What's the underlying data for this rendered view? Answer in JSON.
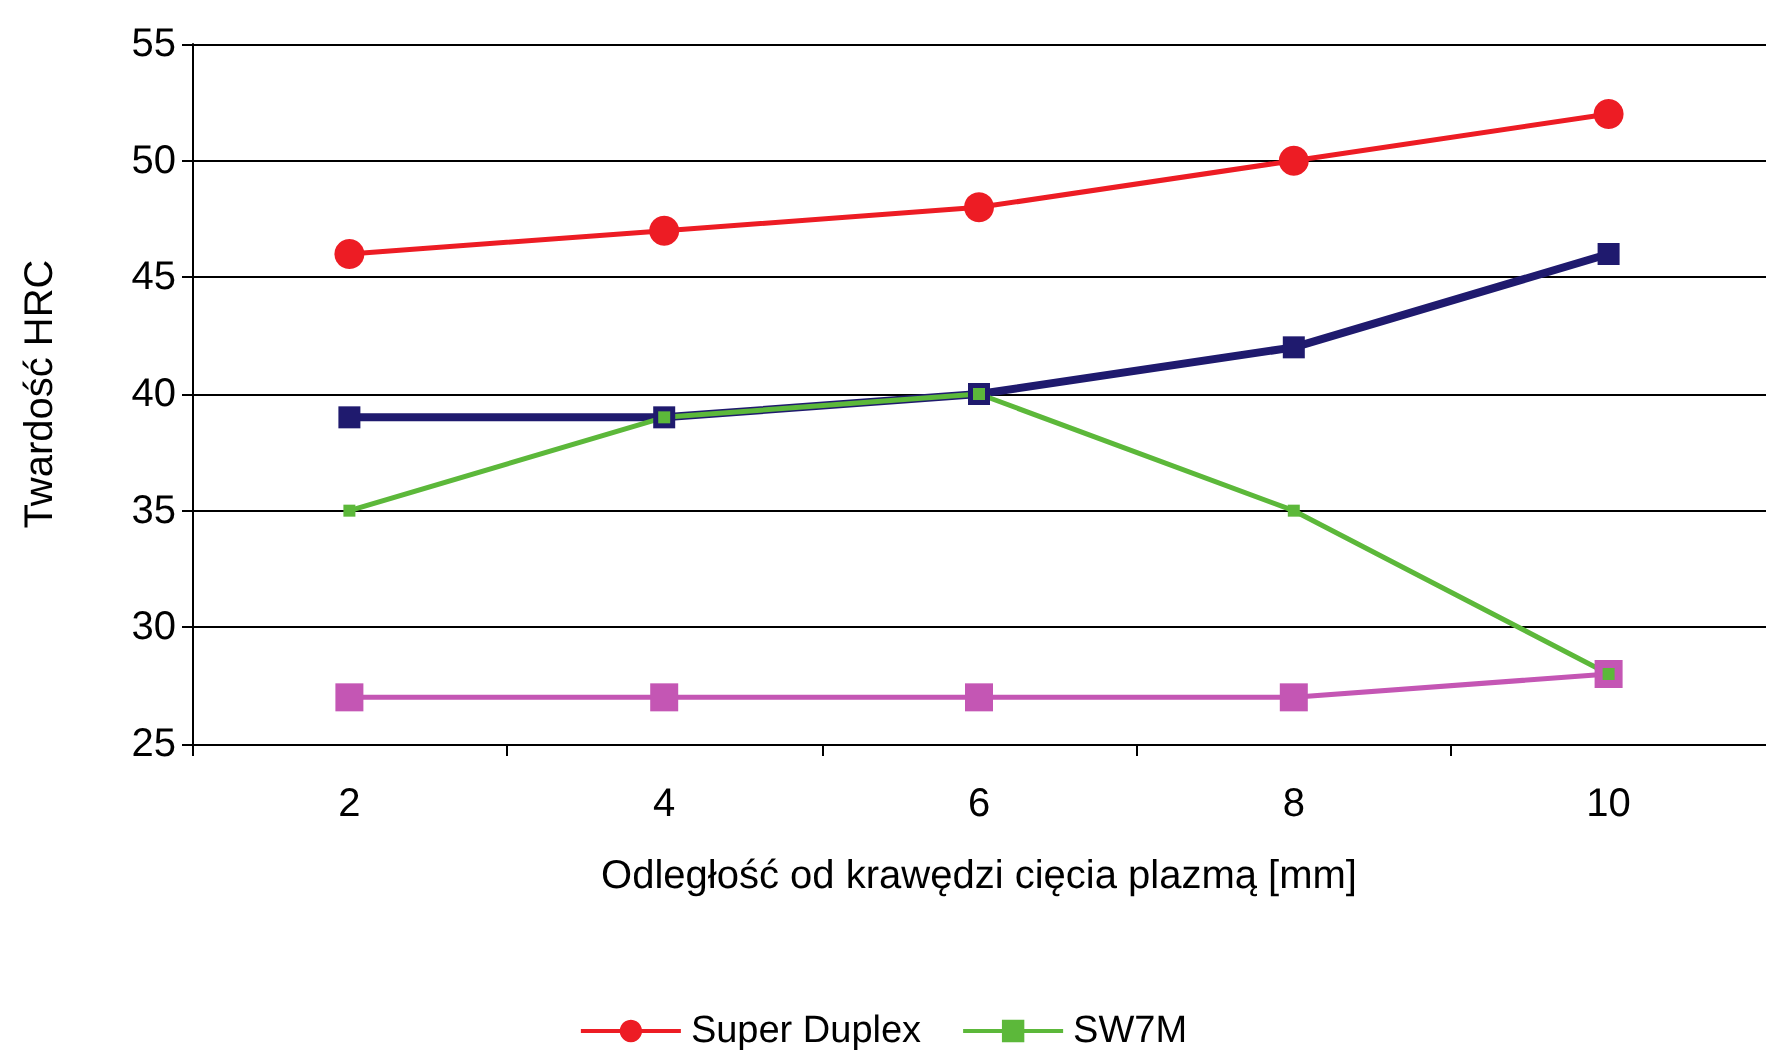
{
  "chart_data": {
    "type": "line",
    "xlabel": "Odległość od krawędzi cięcia plazmą [mm]",
    "ylabel": "Twardość HRC",
    "categories": [
      "2",
      "4",
      "6",
      "8",
      "10"
    ],
    "series": [
      {
        "name": "Super Duplex",
        "color": "#ed1c24",
        "marker": "circle",
        "values": [
          46,
          47,
          48,
          50,
          52
        ]
      },
      {
        "color": "#1f1a6e",
        "marker": "square",
        "values": [
          39,
          39,
          40,
          42,
          46
        ]
      },
      {
        "color": "#c456b4",
        "marker": "square",
        "values": [
          27,
          27,
          27,
          27,
          28
        ]
      },
      {
        "name": "SW7M",
        "color": "#5cb83a",
        "marker": "square",
        "values": [
          35,
          39,
          40,
          35,
          28
        ]
      }
    ],
    "ylim": [
      25,
      55
    ],
    "yticks": [
      25,
      30,
      35,
      40,
      45,
      50,
      55
    ],
    "grid": "y",
    "legend": "bottom",
    "line_style": "solid"
  }
}
